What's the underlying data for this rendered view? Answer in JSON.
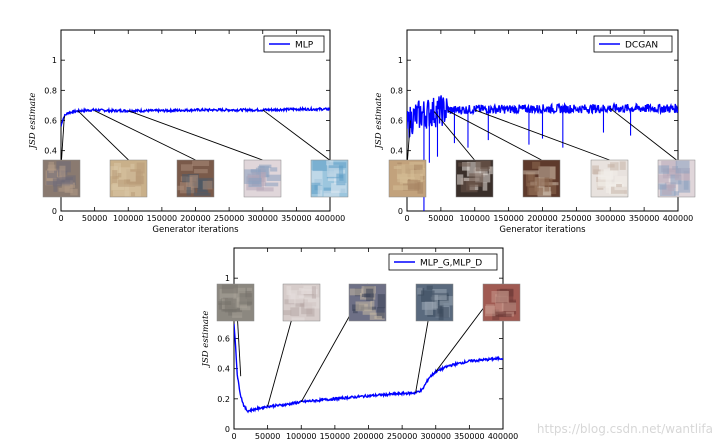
{
  "watermark": "https://blog.csdn.net/wantlifa",
  "chart_data": [
    {
      "type": "line",
      "xlabel": "Generator iterations",
      "ylabel": "JSD estimate",
      "xlim": [
        0,
        400000
      ],
      "ylim": [
        0.0,
        1.2
      ],
      "xticks": [
        0,
        50000,
        100000,
        150000,
        200000,
        250000,
        300000,
        350000,
        400000
      ],
      "yticks": [
        0.0,
        0.2,
        0.4,
        0.6,
        0.8,
        1.0
      ],
      "legend_position": "top-right",
      "series": [
        {
          "name": "MLP",
          "color": "#0000ff",
          "x": [
            0,
            2000,
            5000,
            10000,
            20000,
            30000,
            50000,
            75000,
            100000,
            150000,
            200000,
            250000,
            300000,
            350000,
            400000
          ],
          "y": [
            0.56,
            0.6,
            0.63,
            0.65,
            0.66,
            0.665,
            0.67,
            0.665,
            0.665,
            0.665,
            0.67,
            0.67,
            0.67,
            0.675,
            0.675
          ],
          "noise": "low"
        }
      ],
      "sample_images": [
        {
          "name": "mlp-sample-1",
          "x_iter": 5000,
          "y": 0.63,
          "tone": "noise"
        },
        {
          "name": "mlp-sample-2",
          "x_iter": 25000,
          "y": 0.665,
          "tone": "beige"
        },
        {
          "name": "mlp-sample-3",
          "x_iter": 50000,
          "y": 0.665,
          "tone": "room"
        },
        {
          "name": "mlp-sample-4",
          "x_iter": 100000,
          "y": 0.665,
          "tone": "bed"
        },
        {
          "name": "mlp-sample-5",
          "x_iter": 300000,
          "y": 0.67,
          "tone": "blue"
        }
      ]
    },
    {
      "type": "line",
      "xlabel": "Generator iterations",
      "ylabel": "JSD estimate",
      "xlim": [
        0,
        400000
      ],
      "ylim": [
        0.0,
        1.2
      ],
      "xticks": [
        0,
        50000,
        100000,
        150000,
        200000,
        250000,
        300000,
        350000,
        400000
      ],
      "yticks": [
        0.0,
        0.2,
        0.4,
        0.6,
        0.8,
        1.0
      ],
      "legend_position": "top-right",
      "series": [
        {
          "name": "DCGAN",
          "color": "#0000ff",
          "x": [
            0,
            2000,
            5000,
            10000,
            20000,
            30000,
            50000,
            75000,
            100000,
            150000,
            200000,
            250000,
            300000,
            350000,
            400000
          ],
          "y": [
            0.56,
            0.58,
            0.6,
            0.62,
            0.64,
            0.65,
            0.665,
            0.67,
            0.675,
            0.675,
            0.678,
            0.678,
            0.68,
            0.68,
            0.68
          ],
          "noise": "high",
          "dips": [
            {
              "x": 25000,
              "y": 0.0
            },
            {
              "x": 33000,
              "y": 0.32
            },
            {
              "x": 45000,
              "y": 0.36
            },
            {
              "x": 70000,
              "y": 0.45
            },
            {
              "x": 90000,
              "y": 0.42
            },
            {
              "x": 120000,
              "y": 0.47
            },
            {
              "x": 180000,
              "y": 0.44
            },
            {
              "x": 200000,
              "y": 0.48
            },
            {
              "x": 230000,
              "y": 0.42
            },
            {
              "x": 290000,
              "y": 0.52
            },
            {
              "x": 330000,
              "y": 0.5
            }
          ]
        }
      ],
      "sample_images": [
        {
          "name": "dcgan-sample-1",
          "x_iter": 5000,
          "y": 0.6,
          "tone": "tan"
        },
        {
          "name": "dcgan-sample-2",
          "x_iter": 40000,
          "y": 0.66,
          "tone": "bedroom"
        },
        {
          "name": "dcgan-sample-3",
          "x_iter": 60000,
          "y": 0.665,
          "tone": "curtain"
        },
        {
          "name": "dcgan-sample-4",
          "x_iter": 100000,
          "y": 0.67,
          "tone": "bright-bed"
        },
        {
          "name": "dcgan-sample-5",
          "x_iter": 300000,
          "y": 0.68,
          "tone": "bed"
        }
      ]
    },
    {
      "type": "line",
      "xlabel": "",
      "ylabel": "JSD estimate",
      "xlim": [
        0,
        400000
      ],
      "ylim": [
        0.0,
        1.2
      ],
      "xticks": [
        0,
        50000,
        100000,
        150000,
        200000,
        250000,
        300000,
        350000,
        400000
      ],
      "yticks": [
        0.0,
        0.2,
        0.4,
        0.6,
        0.8,
        1.0
      ],
      "legend_position": "top-right",
      "series": [
        {
          "name": "MLP_G,MLP_D",
          "color": "#0000ff",
          "x": [
            0,
            2000,
            5000,
            10000,
            15000,
            20000,
            25000,
            30000,
            40000,
            50000,
            75000,
            100000,
            150000,
            200000,
            250000,
            270000,
            280000,
            290000,
            300000,
            320000,
            350000,
            400000
          ],
          "y": [
            0.69,
            0.58,
            0.35,
            0.22,
            0.15,
            0.12,
            0.125,
            0.13,
            0.14,
            0.15,
            0.16,
            0.18,
            0.2,
            0.22,
            0.235,
            0.24,
            0.26,
            0.34,
            0.38,
            0.42,
            0.45,
            0.47
          ],
          "noise": "low"
        }
      ],
      "sample_images": [
        {
          "name": "mlpd-sample-1",
          "x_iter": 10000,
          "y": 0.35,
          "tone": "gray-noise"
        },
        {
          "name": "mlpd-sample-2",
          "x_iter": 50000,
          "y": 0.15,
          "tone": "pale"
        },
        {
          "name": "mlpd-sample-3",
          "x_iter": 100000,
          "y": 0.18,
          "tone": "blotch"
        },
        {
          "name": "mlpd-sample-4",
          "x_iter": 270000,
          "y": 0.24,
          "tone": "blue-noise"
        },
        {
          "name": "mlpd-sample-5",
          "x_iter": 300000,
          "y": 0.38,
          "tone": "red"
        }
      ]
    }
  ]
}
